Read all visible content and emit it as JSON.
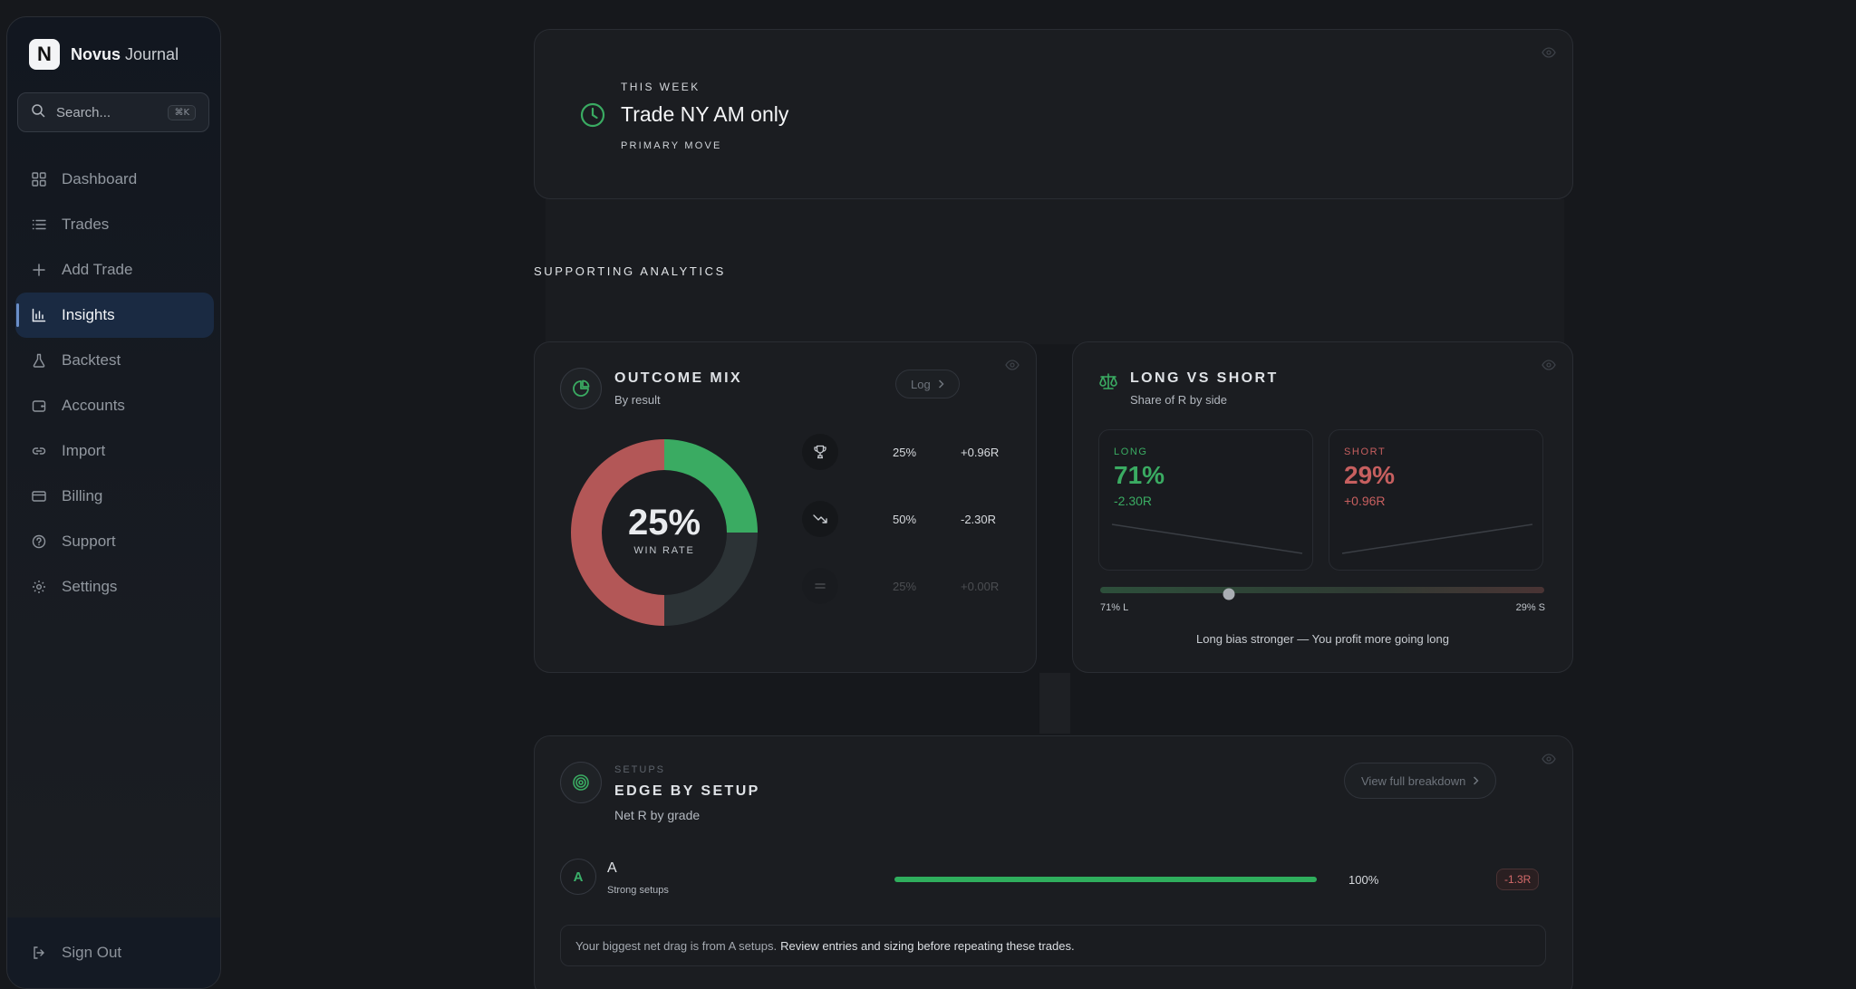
{
  "brand": {
    "name_bold": "Novus",
    "name_rest": "Journal",
    "logo_letter": "N"
  },
  "search": {
    "placeholder": "Search...",
    "shortcut": "⌘K"
  },
  "nav": {
    "items": [
      {
        "label": "Dashboard",
        "icon": "grid-icon"
      },
      {
        "label": "Trades",
        "icon": "list-icon"
      },
      {
        "label": "Add Trade",
        "icon": "plus-icon"
      },
      {
        "label": "Insights",
        "icon": "bar-chart-icon",
        "active": true
      },
      {
        "label": "Backtest",
        "icon": "flask-icon"
      },
      {
        "label": "Accounts",
        "icon": "wallet-icon"
      },
      {
        "label": "Import",
        "icon": "link-icon"
      },
      {
        "label": "Billing",
        "icon": "credit-card-icon"
      },
      {
        "label": "Support",
        "icon": "help-circle-icon"
      },
      {
        "label": "Settings",
        "icon": "gear-icon"
      }
    ],
    "sign_out": "Sign Out"
  },
  "hero": {
    "overline": "THIS WEEK",
    "title": "Trade NY AM only",
    "subtitle": "PRIMARY MOVE"
  },
  "section_title": "SUPPORTING ANALYTICS",
  "outcome_mix": {
    "title": "OUTCOME MIX",
    "subtitle": "By result",
    "pill": "Log",
    "win_rate": "25%",
    "win_rate_label": "WIN RATE",
    "rows": [
      {
        "icon": "trophy-icon",
        "pct": "25%",
        "r": "+0.96R"
      },
      {
        "icon": "trending-down-icon",
        "pct": "50%",
        "r": "-2.30R"
      },
      {
        "icon": "equals-icon",
        "pct": "25%",
        "r": "+0.00R"
      }
    ],
    "slices": {
      "win": 25,
      "loss": 50,
      "breakeven": 25
    },
    "colors": {
      "win": "#3aab62",
      "loss": "#b35757",
      "breakeven": "#2c3336"
    }
  },
  "long_short": {
    "title": "LONG VS SHORT",
    "subtitle": "Share of R by side",
    "long": {
      "label": "LONG",
      "pct": "71%",
      "r": "-2.30R",
      "color": "#3aab62"
    },
    "short": {
      "label": "SHORT",
      "pct": "29%",
      "r": "+0.96R",
      "color": "#c65f5f"
    },
    "long_share": 0.71,
    "left_tick": "71% L",
    "right_tick": "29% S",
    "message": "Long bias stronger — You profit more going long"
  },
  "setups": {
    "overline": "SETUPS",
    "title": "EDGE BY SETUP",
    "subtitle": "Net R by grade",
    "pill": "View full breakdown",
    "rows": [
      {
        "grade": "A",
        "name": "A",
        "desc": "Strong setups",
        "pct": "100%",
        "share": 1.0,
        "net": "-1.3R"
      }
    ],
    "note_prefix": "Your biggest net drag is from A setups.",
    "note_action": "Review entries and sizing before repeating these trades."
  }
}
